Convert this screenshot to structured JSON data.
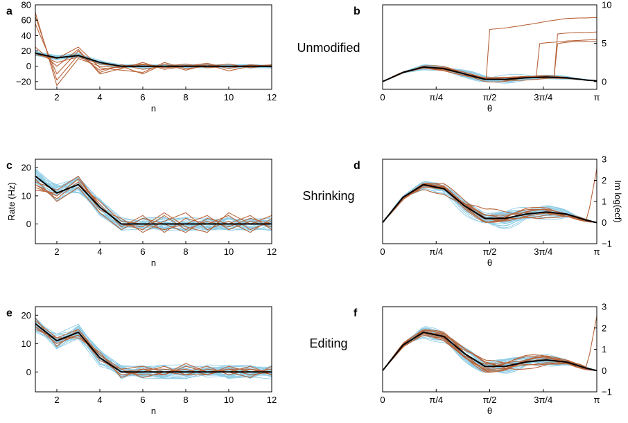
{
  "panels": [
    {
      "letter": "a",
      "xlabel": "n",
      "ylabel": ""
    },
    {
      "letter": "b",
      "xlabel": "θ",
      "ylabel": ""
    },
    {
      "letter": "c",
      "xlabel": "n",
      "ylabel": "Rate (Hz)"
    },
    {
      "letter": "d",
      "xlabel": "θ",
      "ylabel": "Im log(ecf)"
    },
    {
      "letter": "e",
      "xlabel": "n",
      "ylabel": ""
    },
    {
      "letter": "f",
      "xlabel": "θ",
      "ylabel": ""
    }
  ],
  "row_labels": [
    "Unmodified",
    "Shrinking",
    "Editing"
  ],
  "colors": {
    "reference": "#000000",
    "samples_blue": "#8fcde6",
    "samples_orange": "#b8643a"
  },
  "chart_data": [
    {
      "type": "line",
      "id": "a",
      "xlabel": "n",
      "ylabel": "",
      "xlim": [
        1,
        12
      ],
      "ylim": [
        -30,
        80
      ],
      "xticks": [
        2,
        4,
        6,
        8,
        10,
        12
      ],
      "xtick_labels": [
        "2",
        "4",
        "6",
        "8",
        "10",
        "12"
      ],
      "yticks": [
        -20,
        0,
        20,
        40,
        60,
        80
      ],
      "ytick_labels": [
        "−20",
        "0",
        "20",
        "40",
        "60",
        "80"
      ],
      "reference": {
        "x": [
          1,
          2,
          3,
          4,
          5,
          6,
          7,
          8,
          9,
          10,
          11,
          12
        ],
        "y": [
          17,
          11,
          14,
          5,
          0,
          0,
          0,
          0,
          0,
          0,
          0,
          0
        ]
      },
      "orange_samples": [
        [
          70,
          -25,
          10,
          0,
          -2,
          2,
          0,
          1,
          0,
          0,
          1,
          0
        ],
        [
          65,
          -18,
          15,
          -5,
          0,
          3,
          -2,
          0,
          2,
          -1,
          0,
          0
        ],
        [
          55,
          -10,
          20,
          -8,
          2,
          -4,
          0,
          3,
          -2,
          0,
          1,
          -1
        ],
        [
          25,
          0,
          22,
          -10,
          -3,
          5,
          -4,
          0,
          4,
          -3,
          2,
          0
        ],
        [
          15,
          10,
          25,
          -2,
          -5,
          -8,
          5,
          -3,
          0,
          3,
          -2,
          1
        ],
        [
          18,
          5,
          12,
          3,
          0,
          -10,
          3,
          -5,
          2,
          -6,
          0,
          2
        ]
      ]
    },
    {
      "type": "line",
      "id": "b",
      "xlabel": "θ",
      "ylabel": "",
      "xlim": [
        0,
        3.14159
      ],
      "ylim": [
        -1,
        10
      ],
      "xticks": [
        0,
        0.7854,
        1.5708,
        2.3562,
        3.14159
      ],
      "xtick_labels": [
        "0",
        "π/4",
        "π/2",
        "3π/4",
        "π"
      ],
      "yticks": [
        0,
        5,
        10
      ],
      "ytick_labels": [
        "0",
        "5",
        "10"
      ],
      "y_axis_side": "right",
      "reference": {
        "x": [
          0,
          0.3,
          0.6,
          0.9,
          1.2,
          1.5,
          1.8,
          2.1,
          2.4,
          2.7,
          3.0,
          3.14159
        ],
        "y": [
          0,
          1.2,
          1.9,
          1.7,
          1.0,
          0.3,
          0.3,
          0.5,
          0.6,
          0.5,
          0.2,
          0.1
        ]
      }
    },
    {
      "type": "line",
      "id": "c",
      "xlabel": "n",
      "ylabel": "Rate (Hz)",
      "xlim": [
        1,
        12
      ],
      "ylim": [
        -7,
        23
      ],
      "xticks": [
        2,
        4,
        6,
        8,
        10,
        12
      ],
      "xtick_labels": [
        "2",
        "4",
        "6",
        "8",
        "10",
        "12"
      ],
      "yticks": [
        0,
        10,
        20
      ],
      "ytick_labels": [
        "0",
        "10",
        "20"
      ],
      "reference": {
        "x": [
          1,
          2,
          3,
          4,
          5,
          6,
          7,
          8,
          9,
          10,
          11,
          12
        ],
        "y": [
          17,
          11,
          14,
          6,
          0,
          0,
          0,
          0,
          0,
          0,
          0,
          0
        ]
      },
      "orange_samples": [
        [
          15,
          12,
          17,
          6,
          0,
          -2,
          3,
          -2,
          1,
          -1,
          2,
          0
        ],
        [
          13,
          10,
          16,
          7,
          -1,
          3,
          -3,
          2,
          0,
          3,
          -2,
          1
        ],
        [
          14,
          9,
          15,
          5,
          2,
          -3,
          1,
          4,
          -2,
          1,
          -3,
          2
        ],
        [
          12,
          11,
          14,
          8,
          1,
          0,
          -2,
          0,
          3,
          -2,
          1,
          -1
        ],
        [
          16,
          8,
          13,
          4,
          -2,
          2,
          0,
          -3,
          2,
          0,
          3,
          -2
        ],
        [
          14,
          10,
          16,
          6,
          0,
          -1,
          4,
          -1,
          -3,
          4,
          0,
          3
        ]
      ]
    },
    {
      "type": "line",
      "id": "d",
      "xlabel": "θ",
      "ylabel": "Im log(ecf)",
      "xlim": [
        0,
        3.14159
      ],
      "ylim": [
        -1,
        3
      ],
      "xticks": [
        0,
        0.7854,
        1.5708,
        2.3562,
        3.14159
      ],
      "xtick_labels": [
        "0",
        "π/4",
        "π/2",
        "3π/4",
        "π"
      ],
      "yticks": [
        -1,
        0,
        1,
        2,
        3
      ],
      "ytick_labels": [
        "−1",
        "0",
        "1",
        "2",
        "3"
      ],
      "y_axis_side": "right",
      "reference": {
        "x": [
          0,
          0.3,
          0.6,
          0.9,
          1.2,
          1.5,
          1.8,
          2.1,
          2.4,
          2.7,
          3.0,
          3.14159
        ],
        "y": [
          0,
          1.2,
          1.8,
          1.6,
          0.8,
          0.2,
          0.2,
          0.4,
          0.5,
          0.4,
          0.1,
          0.0
        ]
      }
    },
    {
      "type": "line",
      "id": "e",
      "xlabel": "n",
      "ylabel": "",
      "xlim": [
        1,
        12
      ],
      "ylim": [
        -7,
        23
      ],
      "xticks": [
        2,
        4,
        6,
        8,
        10,
        12
      ],
      "xtick_labels": [
        "2",
        "4",
        "6",
        "8",
        "10",
        "12"
      ],
      "yticks": [
        0,
        10,
        20
      ],
      "ytick_labels": [
        "0",
        "10",
        "20"
      ],
      "reference": {
        "x": [
          1,
          2,
          3,
          4,
          5,
          6,
          7,
          8,
          9,
          10,
          11,
          12
        ],
        "y": [
          17,
          11,
          14,
          5,
          0,
          0,
          0,
          0,
          0,
          0,
          0,
          0
        ]
      },
      "orange_samples": [
        [
          18,
          12,
          15,
          6,
          0,
          1,
          -1,
          2,
          0,
          1,
          -1,
          0
        ],
        [
          16,
          10,
          13,
          5,
          -1,
          0,
          2,
          -1,
          1,
          0,
          2,
          -1
        ],
        [
          17,
          11,
          14,
          4,
          1,
          -2,
          0,
          1,
          -1,
          2,
          0,
          1
        ],
        [
          15,
          12,
          12,
          7,
          -2,
          1,
          1,
          0,
          2,
          -1,
          1,
          0
        ],
        [
          19,
          9,
          15,
          5,
          0,
          -1,
          -1,
          3,
          0,
          0,
          -2,
          2
        ],
        [
          16,
          11,
          13,
          6,
          1,
          2,
          0,
          -1,
          -1,
          1,
          1,
          -1
        ]
      ]
    },
    {
      "type": "line",
      "id": "f",
      "xlabel": "θ",
      "ylabel": "",
      "xlim": [
        0,
        3.14159
      ],
      "ylim": [
        -1,
        3
      ],
      "xticks": [
        0,
        0.7854,
        1.5708,
        2.3562,
        3.14159
      ],
      "xtick_labels": [
        "0",
        "π/4",
        "π/2",
        "3π/4",
        "π"
      ],
      "yticks": [
        -1,
        0,
        1,
        2,
        3
      ],
      "ytick_labels": [
        "−1",
        "0",
        "1",
        "2",
        "3"
      ],
      "y_axis_side": "right",
      "reference": {
        "x": [
          0,
          0.3,
          0.6,
          0.9,
          1.2,
          1.5,
          1.8,
          2.1,
          2.4,
          2.7,
          3.0,
          3.14159
        ],
        "y": [
          0,
          1.2,
          1.8,
          1.6,
          0.8,
          0.2,
          0.2,
          0.4,
          0.5,
          0.4,
          0.1,
          0.0
        ]
      }
    }
  ]
}
